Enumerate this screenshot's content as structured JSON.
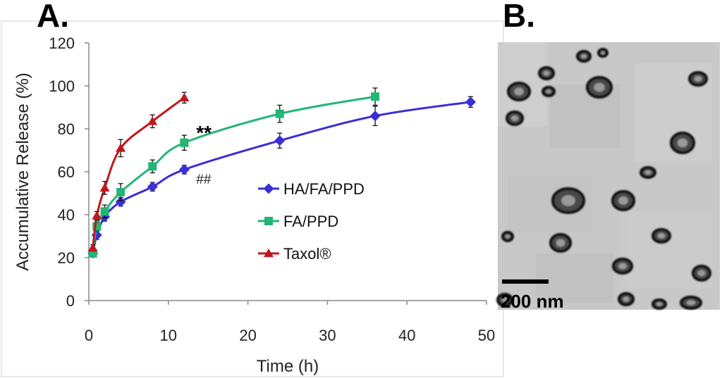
{
  "panels": {
    "a_label": "A.",
    "b_label": "B."
  },
  "chart_data": {
    "type": "line",
    "title": "",
    "xlabel": "Time (h)",
    "ylabel": "Accumulative Release (%)",
    "xlim": [
      0,
      50
    ],
    "ylim": [
      0,
      120
    ],
    "xticks": [
      0,
      10,
      20,
      30,
      40,
      50
    ],
    "yticks": [
      0,
      20,
      40,
      60,
      80,
      100,
      120
    ],
    "grid": false,
    "legend_position": "center-right",
    "series": [
      {
        "name": "HA/FA/PPD",
        "color": "#3a2fd6",
        "marker": "diamond",
        "x": [
          0.5,
          1,
          2,
          4,
          8,
          12,
          24,
          36,
          48
        ],
        "values": [
          22,
          30.5,
          39,
          46,
          53,
          61,
          74.5,
          86,
          92.5
        ],
        "errors": [
          1.5,
          2,
          2,
          2,
          2,
          2,
          3.5,
          4.5,
          2.5
        ]
      },
      {
        "name": "FA/PPD",
        "color": "#22b573",
        "marker": "square",
        "x": [
          0.5,
          1,
          2,
          4,
          8,
          12,
          24,
          36
        ],
        "values": [
          22,
          34.5,
          41.5,
          50.5,
          62.5,
          73.5,
          87,
          95
        ],
        "errors": [
          1.5,
          2,
          3,
          4,
          3,
          3.5,
          4,
          4
        ]
      },
      {
        "name": "Taxol®",
        "color": "#c0171c",
        "marker": "triangle",
        "x": [
          0.5,
          1,
          2,
          4,
          8,
          12
        ],
        "values": [
          24.5,
          39.5,
          52.5,
          71,
          83.5,
          94.5
        ],
        "errors": [
          1.5,
          2,
          3,
          4,
          3,
          2.5
        ]
      }
    ],
    "annotations": [
      {
        "text": "**",
        "x": 13.5,
        "y": 79
      },
      {
        "text": "##",
        "x": 13.5,
        "y": 57
      }
    ]
  },
  "tem_image": {
    "scale_bar_label": "200 nm"
  }
}
